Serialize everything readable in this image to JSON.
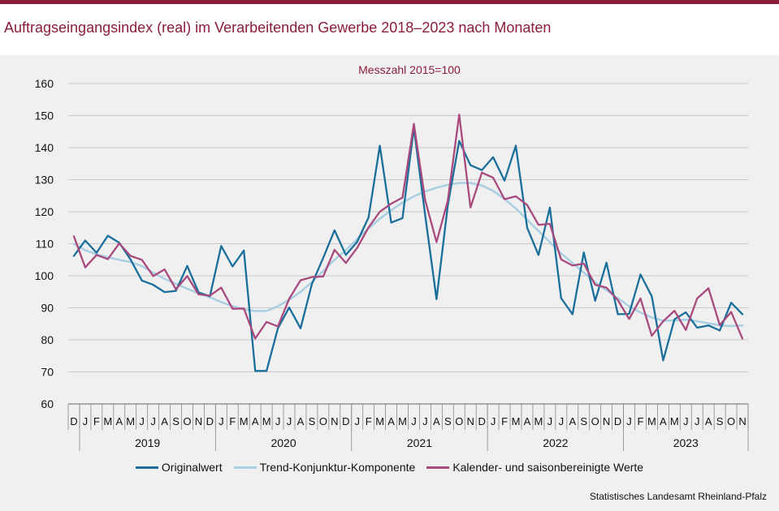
{
  "title": "Auftragseingangsindex (real) im Verarbeitenden Gewerbe 2018–2023 nach Monaten",
  "source": "Statistisches Landesamt  Rheinland-Pfalz",
  "chart_data": {
    "type": "line",
    "title": "Messzahl  2015=100",
    "ylim": [
      60,
      160
    ],
    "yticks": [
      60,
      70,
      80,
      90,
      100,
      110,
      120,
      130,
      140,
      150,
      160
    ],
    "grid": true,
    "legend_position": "bottom",
    "month_labels": [
      "D",
      "J",
      "F",
      "M",
      "A",
      "M",
      "J",
      "J",
      "A",
      "S",
      "O",
      "N",
      "D",
      "J",
      "F",
      "M",
      "A",
      "M",
      "J",
      "J",
      "A",
      "S",
      "O",
      "N",
      "D",
      "J",
      "F",
      "M",
      "A",
      "M",
      "J",
      "J",
      "A",
      "S",
      "O",
      "N",
      "D",
      "J",
      "F",
      "M",
      "A",
      "M",
      "J",
      "J",
      "A",
      "S",
      "O",
      "N",
      "D",
      "J",
      "F",
      "M",
      "A",
      "M",
      "J",
      "J",
      "A",
      "S",
      "O",
      "N"
    ],
    "year_labels": [
      {
        "label": "2019",
        "start": 1,
        "end": 12
      },
      {
        "label": "2020",
        "start": 13,
        "end": 24
      },
      {
        "label": "2021",
        "start": 25,
        "end": 36
      },
      {
        "label": "2022",
        "start": 37,
        "end": 48
      },
      {
        "label": "2023",
        "start": 49,
        "end": 59
      }
    ],
    "series": [
      {
        "name": "Originalwert",
        "color": "#1a6f9a",
        "values": [
          106.2,
          111,
          107.2,
          112.5,
          110.3,
          105.1,
          98.5,
          97.2,
          94.9,
          95.3,
          103.1,
          94.8,
          93.6,
          109.3,
          102.9,
          107.9,
          70.3,
          70.3,
          83.6,
          90.1,
          83.6,
          97.4,
          105.6,
          114.2,
          106.5,
          110.6,
          118.2,
          140.6,
          116.6,
          118,
          146.2,
          118.9,
          92.7,
          122,
          142.1,
          134.5,
          133,
          137,
          129.7,
          140.6,
          115,
          106.5,
          121.3,
          93,
          88,
          107.3,
          92.2,
          104.1,
          88,
          88.1,
          100.4,
          93.6,
          73.6,
          86.4,
          88.6,
          83.8,
          84.5,
          82.9,
          91.6,
          88
        ]
      },
      {
        "name": "Trend-Konjunktur-Komponente",
        "color": "#a9cfe2",
        "values": [
          110,
          108,
          106.7,
          105.8,
          105,
          104.3,
          103,
          101,
          99,
          97.5,
          96,
          94.5,
          93.3,
          91.8,
          90.5,
          89.5,
          89,
          89,
          90.5,
          92.5,
          95,
          98,
          101.5,
          105,
          108,
          111.5,
          114.8,
          117.8,
          120.5,
          122.8,
          124.8,
          126.3,
          127.5,
          128.4,
          129,
          129,
          128.2,
          126.5,
          124,
          121,
          117.5,
          114,
          110.5,
          107,
          104,
          101,
          98,
          95.5,
          93,
          90.5,
          88.5,
          87,
          86,
          86,
          86.3,
          85.8,
          85.2,
          84.5,
          84.3,
          84.5
        ]
      },
      {
        "name": "Kalender- und saisonbereinigte Werte",
        "color": "#a84a7e",
        "values": [
          112.3,
          102.6,
          106.5,
          105.2,
          110.1,
          106.2,
          105,
          99.9,
          102,
          95.8,
          99.9,
          94.2,
          93.8,
          96.3,
          89.7,
          89.8,
          80.4,
          85.6,
          84.2,
          92.8,
          98.6,
          99.6,
          99.8,
          108.1,
          104,
          108.7,
          115.1,
          120,
          122.5,
          124.4,
          147.4,
          123.6,
          110.5,
          123.5,
          150.3,
          121.3,
          132.2,
          130.6,
          123.9,
          124.8,
          122.1,
          115.9,
          116.2,
          105.1,
          103.2,
          103.8,
          97.2,
          96.3,
          92.4,
          86.5,
          92.9,
          81.3,
          85.8,
          89.1,
          83.1,
          92.9,
          96.1,
          84.6,
          88.7,
          80.4
        ]
      }
    ]
  }
}
